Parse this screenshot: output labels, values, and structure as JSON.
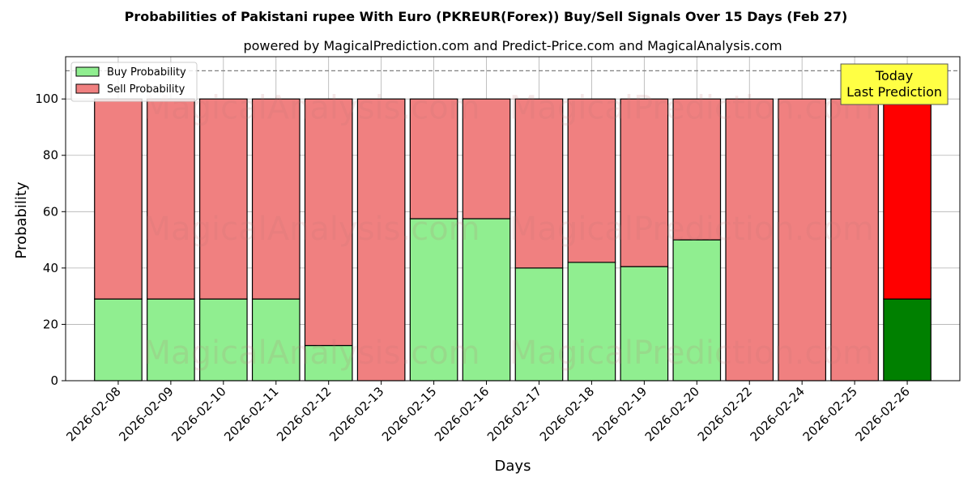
{
  "chart_data": {
    "type": "bar",
    "stacked": true,
    "title": "Probabilities of Pakistani rupee With Euro (PKREUR(Forex)) Buy/Sell Signals Over 15 Days (Feb 27)",
    "subtitle": "powered by MagicalPrediction.com and Predict-Price.com and MagicalAnalysis.com",
    "xlabel": "Days",
    "ylabel": "Probability",
    "ylim": [
      0,
      115
    ],
    "yticks": [
      0,
      20,
      40,
      60,
      80,
      100
    ],
    "grid": true,
    "legend_position": "top-left",
    "reference_line": 110,
    "categories": [
      "2026-02-08",
      "2026-02-09",
      "2026-02-10",
      "2026-02-11",
      "2026-02-12",
      "2026-02-13",
      "2026-02-15",
      "2026-02-16",
      "2026-02-17",
      "2026-02-18",
      "2026-02-19",
      "2026-02-20",
      "2026-02-22",
      "2026-02-24",
      "2026-02-25",
      "2026-02-26"
    ],
    "series": [
      {
        "name": "Buy Probability",
        "color": "#90ee90",
        "highlight_color": "#008000",
        "values": [
          29,
          29,
          29,
          29,
          12.5,
          0,
          57.5,
          57.5,
          40,
          42,
          40.5,
          50,
          0,
          0,
          0,
          29
        ]
      },
      {
        "name": "Sell Probability",
        "color": "#f08080",
        "highlight_color": "#ff0000",
        "values": [
          71,
          71,
          71,
          71,
          87.5,
          100,
          42.5,
          42.5,
          60,
          58,
          59.5,
          50,
          100,
          100,
          100,
          71
        ]
      }
    ],
    "annotation": {
      "lines": [
        "Today",
        "Last Prediction"
      ],
      "background": "#ffff44",
      "target_category": "2026-02-26"
    },
    "watermarks": [
      "MagicalAnalysis.com",
      "MagicalPrediction.com"
    ]
  }
}
